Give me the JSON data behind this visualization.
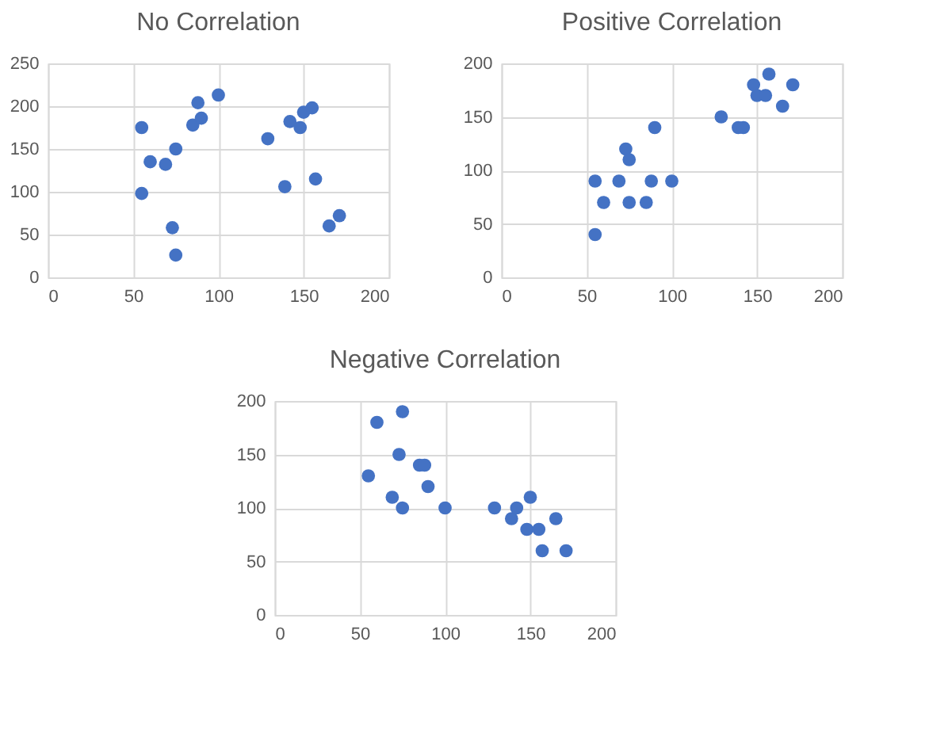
{
  "chart_data": [
    {
      "type": "scatter",
      "title": "No Correlation",
      "xlim": [
        0,
        200
      ],
      "xticks": [
        0,
        50,
        100,
        150,
        200
      ],
      "ylim": [
        0,
        250
      ],
      "yticks": [
        0,
        50,
        100,
        150,
        200,
        250
      ],
      "grid": true,
      "marker": "circle",
      "series": [
        {
          "color": "#4472c4",
          "x": [
            55,
            55,
            60,
            69,
            75,
            73,
            75,
            85,
            88,
            90,
            100,
            129,
            139,
            142,
            148,
            150,
            155,
            157,
            165,
            171
          ],
          "values": [
            175,
            98,
            135,
            132,
            150,
            58,
            26,
            178,
            204,
            186,
            213,
            162,
            106,
            182,
            175,
            193,
            198,
            115,
            60,
            72
          ]
        }
      ]
    },
    {
      "type": "scatter",
      "title": "Positive Correlation",
      "xlim": [
        0,
        200
      ],
      "xticks": [
        0,
        50,
        100,
        150,
        200
      ],
      "ylim": [
        0,
        200
      ],
      "yticks": [
        0,
        50,
        100,
        150,
        200
      ],
      "grid": true,
      "marker": "circle",
      "series": [
        {
          "color": "#4472c4",
          "x": [
            55,
            55,
            60,
            69,
            73,
            75,
            75,
            85,
            88,
            90,
            100,
            129,
            139,
            142,
            148,
            150,
            155,
            157,
            165,
            171
          ],
          "values": [
            90,
            40,
            70,
            90,
            120,
            110,
            70,
            70,
            90,
            140,
            90,
            150,
            140,
            140,
            180,
            170,
            170,
            190,
            160,
            180
          ]
        }
      ]
    },
    {
      "type": "scatter",
      "title": "Negative Correlation",
      "xlim": [
        0,
        200
      ],
      "xticks": [
        0,
        50,
        100,
        150,
        200
      ],
      "ylim": [
        0,
        200
      ],
      "yticks": [
        0,
        50,
        100,
        150,
        200
      ],
      "grid": true,
      "marker": "circle",
      "series": [
        {
          "color": "#4472c4",
          "x": [
            55,
            60,
            69,
            73,
            75,
            75,
            85,
            88,
            90,
            100,
            129,
            139,
            142,
            148,
            150,
            155,
            157,
            165,
            171
          ],
          "values": [
            130,
            180,
            110,
            150,
            190,
            100,
            140,
            140,
            120,
            100,
            100,
            90,
            100,
            80,
            110,
            80,
            60,
            90,
            60
          ]
        }
      ]
    }
  ]
}
